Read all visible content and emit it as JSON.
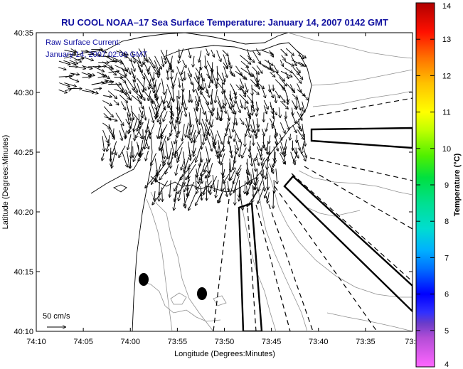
{
  "title": "RU COOL  NOAA–17  Sea Surface Temperature:  January 14, 2007 0142 GMT",
  "inset": {
    "line1": "Raw Surface Current:",
    "line2": "January 14, 2007 02:00 GMT"
  },
  "scale": {
    "label": "50 cm/s"
  },
  "axes": {
    "xlabel": "Longitude (Degrees:Minutes)",
    "ylabel": "Latitude (Degrees:Minutes)",
    "xticks": [
      "74:10",
      "74:05",
      "74:00",
      "73:55",
      "73:50",
      "73:45",
      "73:40",
      "73:35",
      "73:3"
    ],
    "yticks": [
      "40:35",
      "40:30",
      "40:25",
      "40:20",
      "40:15",
      "40:10"
    ]
  },
  "colorbar": {
    "label": "Temperature (°C)",
    "ticks": [
      "14",
      "13",
      "12",
      "11",
      "10",
      "9",
      "8",
      "7",
      "6",
      "5",
      "4"
    ],
    "min": 4,
    "max": 14
  },
  "colors": {
    "title_text": "#1010a0",
    "contour": "#909090",
    "coast": "#000000"
  }
}
